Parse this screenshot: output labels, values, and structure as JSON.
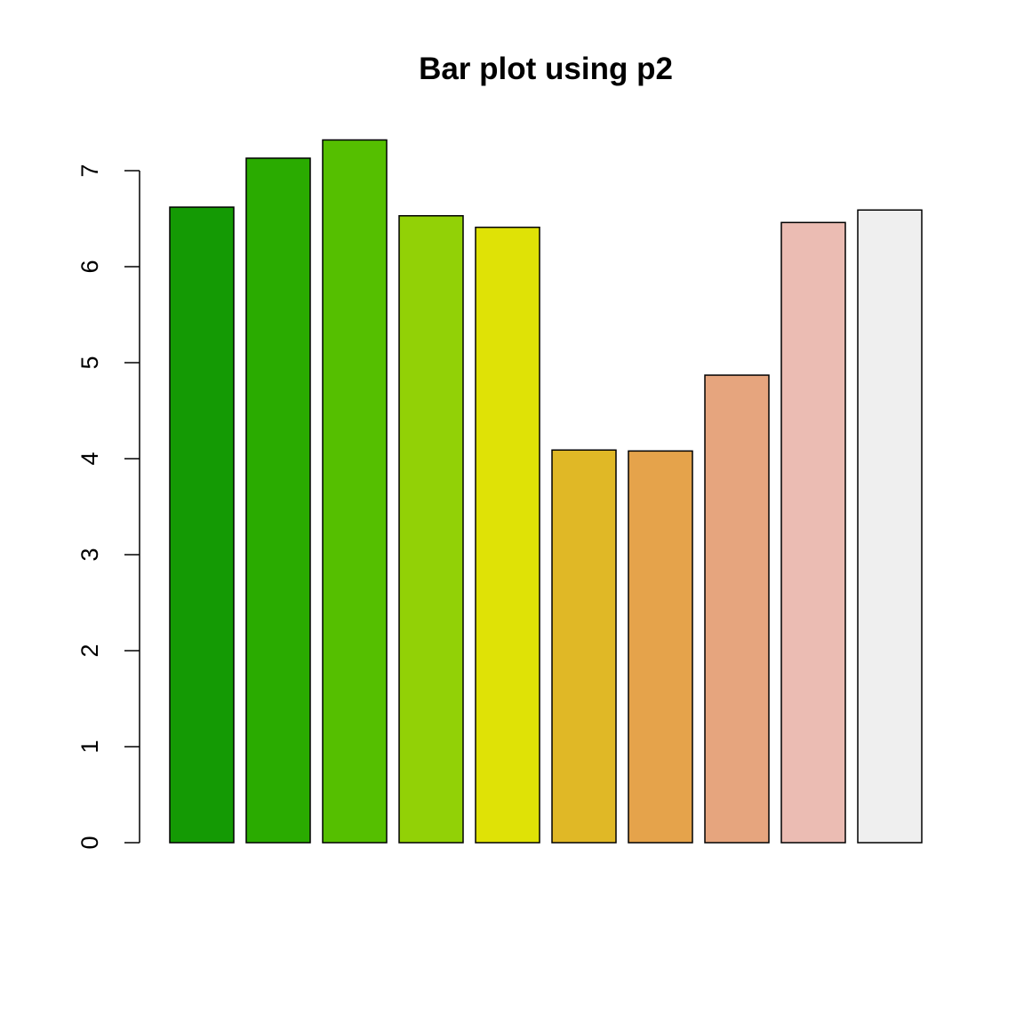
{
  "chart_data": {
    "type": "bar",
    "title": "Bar plot using p2",
    "xlabel": "",
    "ylabel": "",
    "ylim": [
      0,
      7.32
    ],
    "yticks": [
      "0",
      "1",
      "2",
      "3",
      "4",
      "5",
      "6",
      "7"
    ],
    "grid": false,
    "values": [
      6.62,
      7.13,
      7.32,
      6.53,
      6.41,
      4.09,
      4.08,
      4.87,
      6.46,
      6.59
    ],
    "colors": [
      "#149A04",
      "#2AAB00",
      "#55BF00",
      "#92D106",
      "#DFE206",
      "#E0B826",
      "#E5A34B",
      "#E6A57E",
      "#EBBCB3",
      "#EFEFEF"
    ]
  }
}
